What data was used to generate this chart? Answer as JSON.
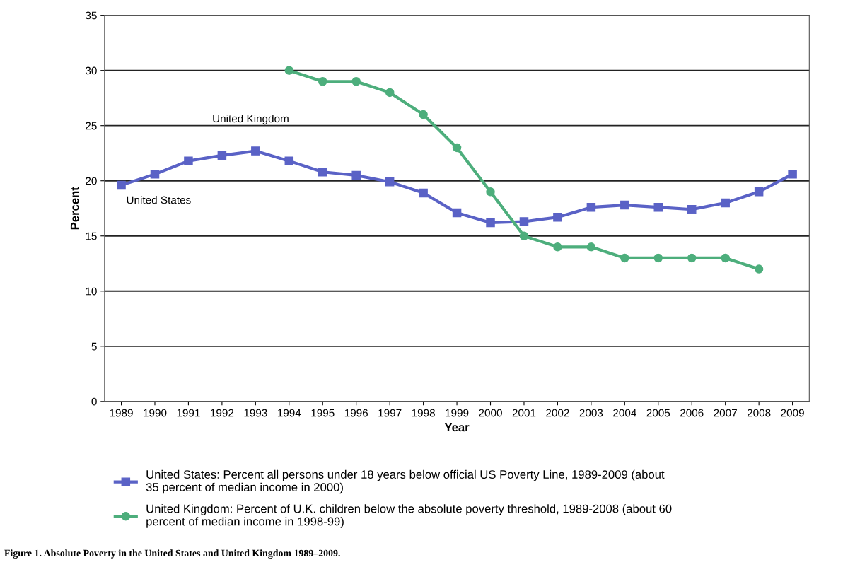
{
  "chart_data": {
    "type": "line",
    "title": "Figure 1. Absolute Poverty in the United States and United Kingdom 1989–2009.",
    "xlabel": "Year",
    "ylabel": "Percent",
    "categories": [
      "1989",
      "1990",
      "1991",
      "1992",
      "1993",
      "1994",
      "1995",
      "1996",
      "1997",
      "1998",
      "1999",
      "2000",
      "2001",
      "2002",
      "2003",
      "2004",
      "2005",
      "2006",
      "2007",
      "2008",
      "2009"
    ],
    "series": [
      {
        "name": "United States: Percent all persons under 18 years below official US Poverty Line, 1989-2009 (about 35 percent of median income in 2000)",
        "color": "#5a62c6",
        "marker": "square",
        "values": [
          19.6,
          20.6,
          21.8,
          22.3,
          22.7,
          21.8,
          20.8,
          20.5,
          19.9,
          18.9,
          17.1,
          16.2,
          16.3,
          16.7,
          17.6,
          17.8,
          17.6,
          17.4,
          18.0,
          19.0,
          20.6
        ]
      },
      {
        "name": "United Kingdom: Percent of U.K. children below the absolute poverty threshold, 1989-2008 (about 60 percent of median income in 1998-99)",
        "color": "#4dae7c",
        "marker": "circle",
        "values": [
          null,
          null,
          null,
          null,
          null,
          30,
          29,
          29,
          28,
          26,
          23,
          19,
          15,
          14,
          14,
          13,
          13,
          13,
          13,
          12,
          null
        ]
      }
    ],
    "annotations": [
      "United States",
      "United Kingdom"
    ],
    "ylim": [
      0,
      35
    ],
    "yticks": [
      0,
      5,
      10,
      15,
      20,
      25,
      30,
      35
    ],
    "grid": "y",
    "legend": "bottom",
    "line_style": "solid"
  }
}
